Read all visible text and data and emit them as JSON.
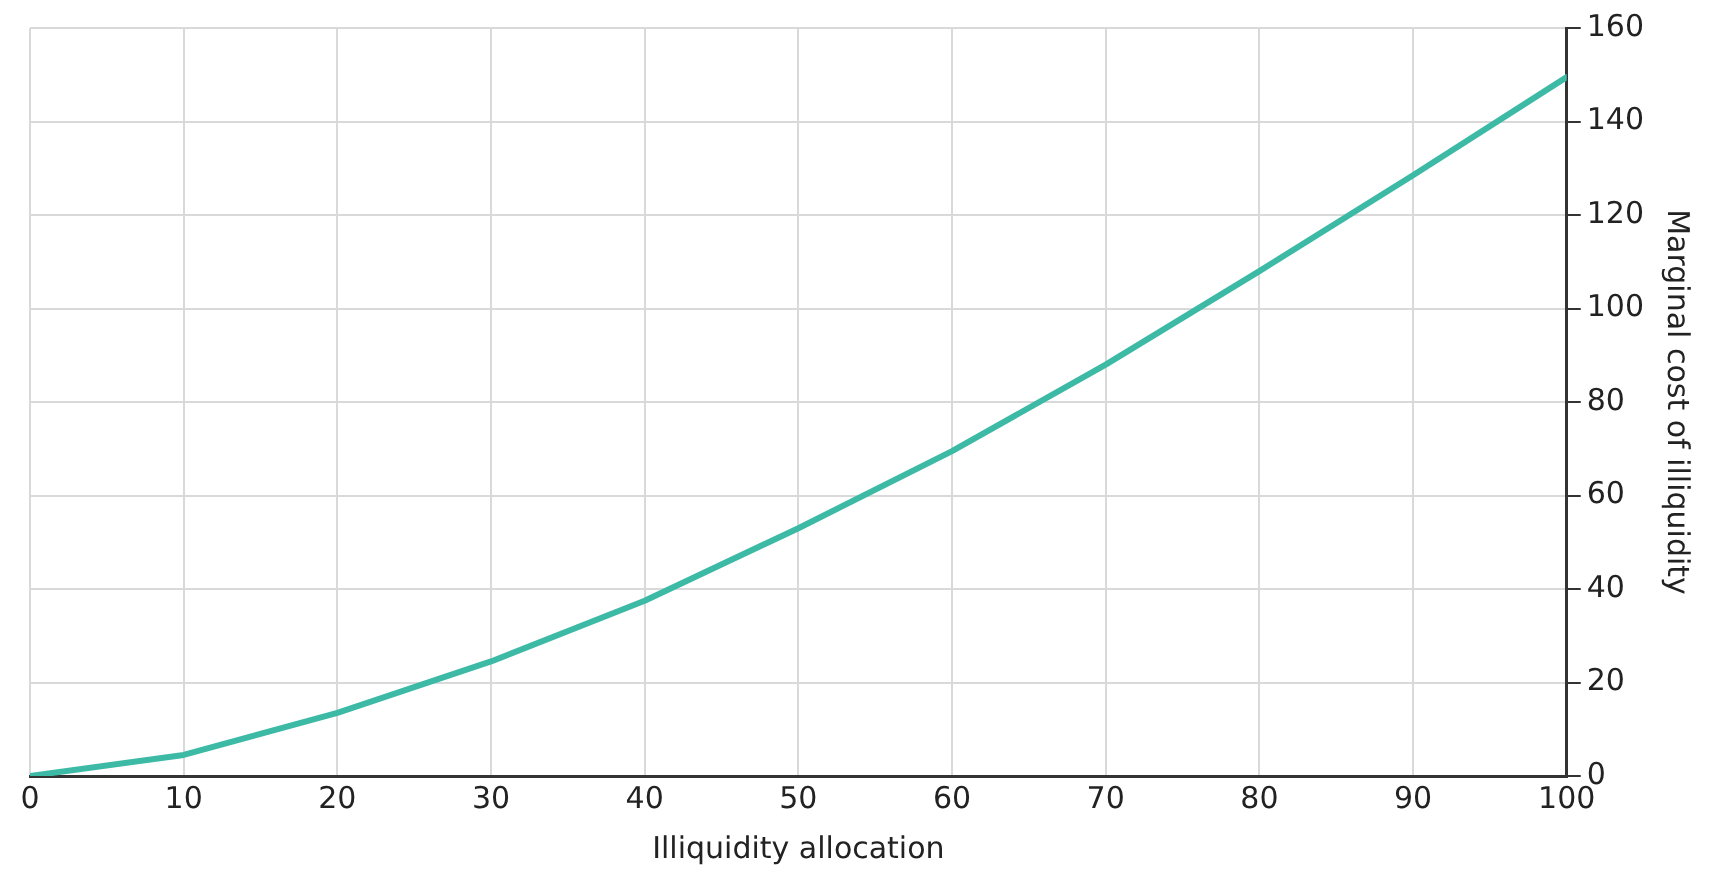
{
  "chart_data": {
    "type": "line",
    "xlabel": "Illiquidity allocation",
    "ylabel": "Marginal cost of illiquidity",
    "x": [
      0,
      10,
      20,
      30,
      40,
      50,
      60,
      70,
      80,
      90,
      100
    ],
    "series": [
      {
        "color": "#3dbaa6",
        "values": [
          0,
          4.5,
          13.5,
          24.5,
          37.5,
          53,
          69.5,
          88,
          108,
          128.5,
          149.5
        ]
      }
    ],
    "xlim": [
      0,
      100
    ],
    "xticks": [
      0,
      10,
      20,
      30,
      40,
      50,
      60,
      70,
      80,
      90,
      100
    ],
    "ylim": [
      0,
      160
    ],
    "yticks": [
      0,
      20,
      40,
      60,
      80,
      100,
      120,
      140,
      160
    ],
    "grid": true,
    "legend": false,
    "marker": "none",
    "line_style": "solid"
  }
}
